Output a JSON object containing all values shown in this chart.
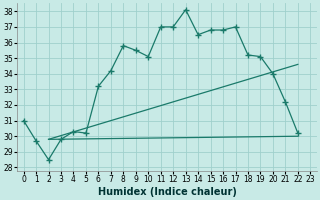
{
  "xlabel": "Humidex (Indice chaleur)",
  "bg_color": "#c8eae6",
  "grid_color": "#a0d0cc",
  "line_color": "#1a7a6a",
  "xlim": [
    -0.5,
    23.5
  ],
  "ylim": [
    27.8,
    38.5
  ],
  "xticks": [
    0,
    1,
    2,
    3,
    4,
    5,
    6,
    7,
    8,
    9,
    10,
    11,
    12,
    13,
    14,
    15,
    16,
    17,
    18,
    19,
    20,
    21,
    22,
    23
  ],
  "yticks": [
    28,
    29,
    30,
    31,
    32,
    33,
    34,
    35,
    36,
    37,
    38
  ],
  "main_x": [
    0,
    1,
    2,
    3,
    4,
    5,
    6,
    7,
    8,
    9,
    10,
    11,
    12,
    13,
    14,
    15,
    16,
    17,
    18,
    19,
    20,
    21,
    22
  ],
  "main_y": [
    31.0,
    29.7,
    28.5,
    29.8,
    30.3,
    30.2,
    33.2,
    34.2,
    35.8,
    35.5,
    35.1,
    37.0,
    37.0,
    38.1,
    36.5,
    36.8,
    36.8,
    37.0,
    35.2,
    35.1,
    34.0,
    32.2,
    30.2
  ],
  "flat_line_x": [
    2,
    22
  ],
  "flat_line_y": [
    29.8,
    30.0
  ],
  "diag_line_x": [
    2,
    22
  ],
  "diag_line_y": [
    29.8,
    34.6
  ],
  "xlabel_fontsize": 7,
  "tick_fontsize": 5.5
}
